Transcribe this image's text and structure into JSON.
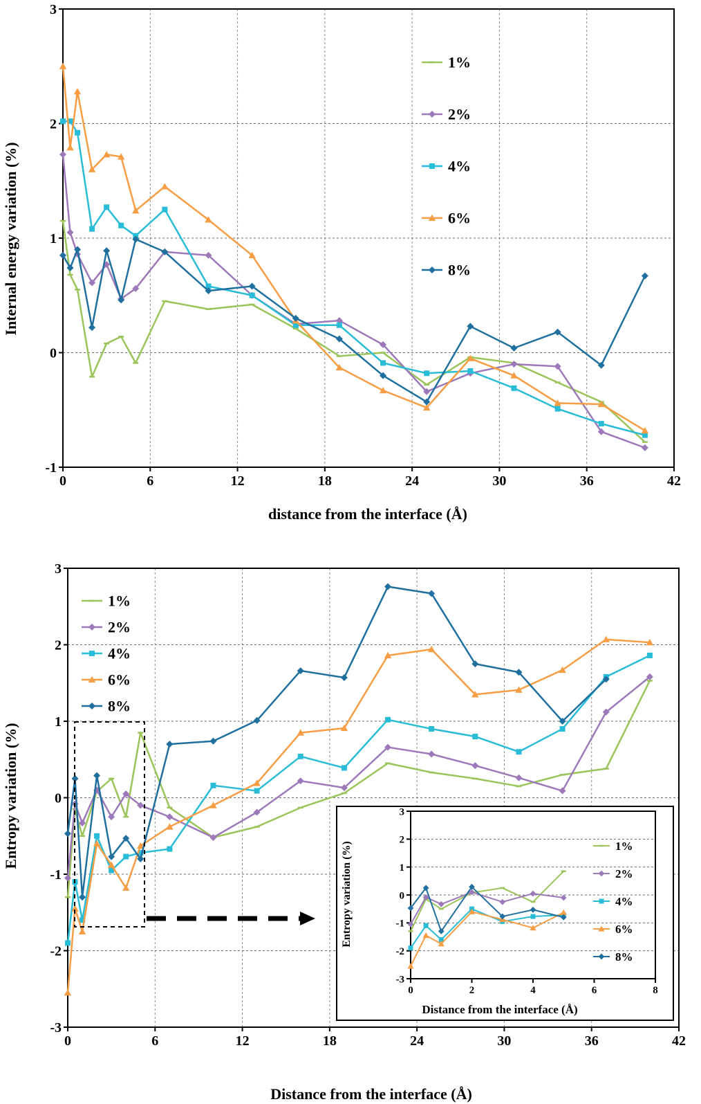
{
  "chart_data": [
    {
      "type": "line",
      "title": "",
      "xlabel": "distance from the interface (Å)",
      "ylabel": "Internal energy variation (%)",
      "xlim": [
        0,
        42
      ],
      "ylim": [
        -1,
        3
      ],
      "xticks": [
        "0",
        "6",
        "12",
        "18",
        "24",
        "30",
        "36",
        "42"
      ],
      "yticks": [
        "-1",
        "0",
        "1",
        "2",
        "3"
      ],
      "grid": "dashed vertical and horizontal",
      "legend_position": "top-right",
      "series": [
        {
          "name": "1%",
          "color": "#9bc45a",
          "marker": "dash",
          "x": [
            0,
            0.5,
            1,
            2,
            3,
            4,
            5,
            7,
            10,
            13,
            16,
            19,
            22,
            25,
            28,
            31,
            34,
            37,
            40
          ],
          "y": [
            1.15,
            0.68,
            0.55,
            -0.21,
            0.08,
            0.14,
            -0.09,
            0.45,
            0.38,
            0.42,
            0.21,
            -0.03,
            0.0,
            -0.28,
            -0.04,
            -0.09,
            -0.26,
            -0.43,
            -0.78
          ]
        },
        {
          "name": "2%",
          "color": "#9d79b9",
          "marker": "diamond",
          "x": [
            0,
            0.5,
            1,
            2,
            3,
            4,
            5,
            7,
            10,
            13,
            16,
            19,
            22,
            25,
            28,
            31,
            34,
            37,
            40
          ],
          "y": [
            1.73,
            1.05,
            0.86,
            0.61,
            0.77,
            0.47,
            0.56,
            0.88,
            0.85,
            0.5,
            0.25,
            0.28,
            0.07,
            -0.34,
            -0.18,
            -0.1,
            -0.12,
            -0.69,
            -0.83
          ]
        },
        {
          "name": "4%",
          "color": "#28bcd6",
          "marker": "square",
          "x": [
            0,
            0.5,
            1,
            2,
            3,
            4,
            5,
            7,
            10,
            13,
            16,
            19,
            22,
            25,
            28,
            31,
            34,
            37,
            40
          ],
          "y": [
            2.02,
            2.02,
            1.92,
            1.08,
            1.27,
            1.11,
            1.02,
            1.25,
            0.58,
            0.5,
            0.24,
            0.24,
            -0.09,
            -0.18,
            -0.16,
            -0.31,
            -0.49,
            -0.62,
            -0.72
          ]
        },
        {
          "name": "6%",
          "color": "#f79d43",
          "marker": "triangle",
          "x": [
            0,
            0.5,
            1,
            2,
            3,
            4,
            5,
            7,
            10,
            13,
            16,
            19,
            22,
            25,
            28,
            31,
            34,
            37,
            40
          ],
          "y": [
            2.5,
            1.79,
            2.28,
            1.6,
            1.73,
            1.71,
            1.24,
            1.45,
            1.16,
            0.85,
            0.28,
            -0.13,
            -0.33,
            -0.48,
            -0.05,
            -0.2,
            -0.44,
            -0.45,
            -0.68
          ]
        },
        {
          "name": "8%",
          "color": "#1f6f9f",
          "marker": "diamond",
          "x": [
            0,
            0.5,
            1,
            2,
            3,
            4,
            5,
            7,
            10,
            13,
            16,
            19,
            22,
            25,
            28,
            31,
            34,
            37,
            40
          ],
          "y": [
            0.85,
            0.74,
            0.9,
            0.22,
            0.89,
            0.46,
            0.99,
            0.88,
            0.54,
            0.58,
            0.3,
            0.12,
            -0.2,
            -0.43,
            0.23,
            0.04,
            0.18,
            -0.11,
            0.67
          ]
        }
      ]
    },
    {
      "type": "line",
      "title": "",
      "xlabel": "Distance from the interface (Å)",
      "ylabel": "Entropy variation (%)",
      "xlim": [
        0,
        42
      ],
      "ylim": [
        -3,
        3
      ],
      "xticks": [
        "0",
        "6",
        "12",
        "18",
        "24",
        "30",
        "36",
        "42"
      ],
      "yticks": [
        "-3",
        "-2",
        "-1",
        "0",
        "1",
        "2",
        "3"
      ],
      "grid": "dashed vertical and horizontal",
      "legend_position": "top-left",
      "series": [
        {
          "name": "1%",
          "color": "#9bc45a",
          "marker": "dash",
          "x": [
            0,
            0.5,
            1,
            2,
            3,
            4,
            5,
            7,
            10,
            13,
            16,
            19,
            22,
            25,
            28,
            31,
            34,
            37,
            40
          ],
          "y": [
            -1.3,
            -0.15,
            -0.5,
            0.08,
            0.25,
            -0.25,
            0.85,
            -0.13,
            -0.52,
            -0.38,
            -0.13,
            0.06,
            0.45,
            0.33,
            0.25,
            0.15,
            0.3,
            0.38,
            1.53
          ]
        },
        {
          "name": "2%",
          "color": "#9d79b9",
          "marker": "diamond",
          "x": [
            0,
            0.5,
            1,
            2,
            3,
            4,
            5,
            7,
            10,
            13,
            16,
            19,
            22,
            25,
            28,
            31,
            34,
            37,
            40
          ],
          "y": [
            -1.05,
            -0.08,
            -0.33,
            0.1,
            -0.25,
            0.05,
            -0.1,
            -0.25,
            -0.52,
            -0.19,
            0.22,
            0.13,
            0.66,
            0.57,
            0.42,
            0.26,
            0.09,
            1.12,
            1.58
          ]
        },
        {
          "name": "4%",
          "color": "#28bcd6",
          "marker": "square",
          "x": [
            0,
            0.5,
            1,
            2,
            3,
            4,
            5,
            7,
            10,
            13,
            16,
            19,
            22,
            25,
            28,
            31,
            34,
            37,
            40
          ],
          "y": [
            -1.9,
            -1.1,
            -1.6,
            -0.5,
            -0.95,
            -0.77,
            -0.72,
            -0.67,
            0.16,
            0.09,
            0.54,
            0.39,
            1.02,
            0.9,
            0.8,
            0.6,
            0.9,
            1.58,
            1.86
          ]
        },
        {
          "name": "6%",
          "color": "#f79d43",
          "marker": "triangle",
          "x": [
            0,
            0.5,
            1,
            2,
            3,
            4,
            5,
            7,
            10,
            13,
            16,
            19,
            22,
            25,
            28,
            31,
            34,
            37,
            40
          ],
          "y": [
            -2.55,
            -1.45,
            -1.75,
            -0.6,
            -0.88,
            -1.18,
            -0.63,
            -0.38,
            -0.1,
            0.19,
            0.85,
            0.91,
            1.86,
            1.94,
            1.35,
            1.41,
            1.67,
            2.07,
            2.03
          ]
        },
        {
          "name": "8%",
          "color": "#1f6f9f",
          "marker": "diamond",
          "x": [
            0,
            0.5,
            1,
            2,
            3,
            4,
            5,
            7,
            10,
            13,
            16,
            19,
            22,
            25,
            28,
            31,
            34,
            37
          ],
          "y": [
            -0.47,
            0.25,
            -1.3,
            0.29,
            -0.77,
            -0.53,
            -0.8,
            0.7,
            0.74,
            1.01,
            1.66,
            1.57,
            2.76,
            2.67,
            1.75,
            1.64,
            1.0,
            1.55
          ]
        }
      ]
    },
    {
      "type": "line",
      "title": "",
      "xlabel": "Distance from the interface (Å)",
      "ylabel": "Entropy variation (%)",
      "xlim": [
        0,
        8
      ],
      "ylim": [
        -3,
        3
      ],
      "xticks": [
        "0",
        "2",
        "4",
        "6",
        "8"
      ],
      "yticks": [
        "-3",
        "-2",
        "-1",
        "0",
        "1",
        "2",
        "3"
      ],
      "grid": "dashed horizontal",
      "legend_position": "right",
      "series": [
        {
          "name": "1%",
          "color": "#9bc45a",
          "marker": "dash",
          "x": [
            0,
            0.5,
            1,
            2,
            3,
            4,
            5
          ],
          "y": [
            -1.3,
            -0.15,
            -0.5,
            0.08,
            0.25,
            -0.25,
            0.85
          ]
        },
        {
          "name": "2%",
          "color": "#9d79b9",
          "marker": "diamond",
          "x": [
            0,
            0.5,
            1,
            2,
            3,
            4,
            5
          ],
          "y": [
            -1.05,
            -0.08,
            -0.33,
            0.1,
            -0.25,
            0.05,
            -0.1
          ]
        },
        {
          "name": "4%",
          "color": "#28bcd6",
          "marker": "square",
          "x": [
            0,
            0.5,
            1,
            2,
            3,
            4,
            5
          ],
          "y": [
            -1.9,
            -1.1,
            -1.6,
            -0.5,
            -0.95,
            -0.77,
            -0.72
          ]
        },
        {
          "name": "6%",
          "color": "#f79d43",
          "marker": "triangle",
          "x": [
            0,
            0.5,
            1,
            2,
            3,
            4,
            5
          ],
          "y": [
            -2.55,
            -1.45,
            -1.75,
            -0.6,
            -0.88,
            -1.18,
            -0.63
          ]
        },
        {
          "name": "8%",
          "color": "#1f6f9f",
          "marker": "diamond",
          "x": [
            0,
            0.5,
            1,
            2,
            3,
            4,
            5
          ],
          "y": [
            -0.47,
            0.25,
            -1.3,
            0.29,
            -0.77,
            -0.53,
            -0.8
          ]
        }
      ]
    }
  ]
}
